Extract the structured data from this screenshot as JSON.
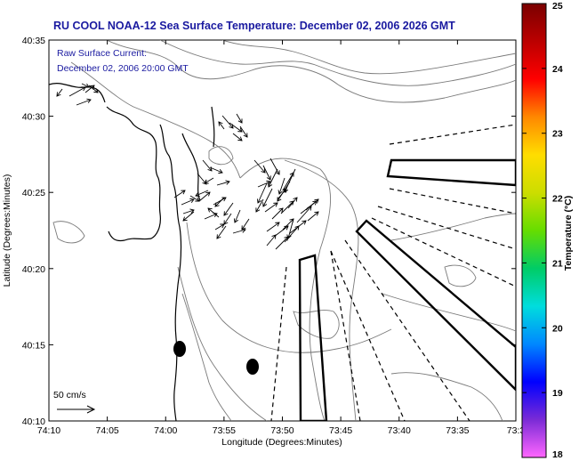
{
  "title": "RU COOL  NOAA-12  Sea Surface Temperature:  December 02, 2006 2026 GMT",
  "inset": {
    "line1": "Raw Surface Current:",
    "line2": "December 02, 2006 20:00 GMT"
  },
  "x_axis": {
    "label": "Longitude (Degrees:Minutes)",
    "ticks": [
      "74:10",
      "74:05",
      "74:00",
      "73:55",
      "73:50",
      "73:45",
      "73:40",
      "73:35",
      "73:3"
    ]
  },
  "y_axis": {
    "label": "Latitude (Degrees:Minutes)",
    "ticks": [
      "40:35",
      "40:30",
      "40:25",
      "40:20",
      "40:15",
      "40:10"
    ]
  },
  "colorbar": {
    "label": "Temperature (°C)",
    "ticks": [
      "25",
      "24",
      "23",
      "22",
      "21",
      "20",
      "19",
      "18"
    ],
    "range": [
      18,
      25
    ],
    "colors": [
      "#ff66ff",
      "#7a2bd6",
      "#0000ff",
      "#0088ff",
      "#00dddd",
      "#00cc66",
      "#66dd00",
      "#ccdd00",
      "#ffdd00",
      "#ff8800",
      "#ff0000",
      "#bb0000",
      "#7a0000"
    ]
  },
  "scale": {
    "label": "50 cm/s"
  },
  "colors": {
    "title": "#1a1aa0",
    "land": "#000000",
    "contours": "#7a7a7a",
    "vectors": "#000000"
  }
}
